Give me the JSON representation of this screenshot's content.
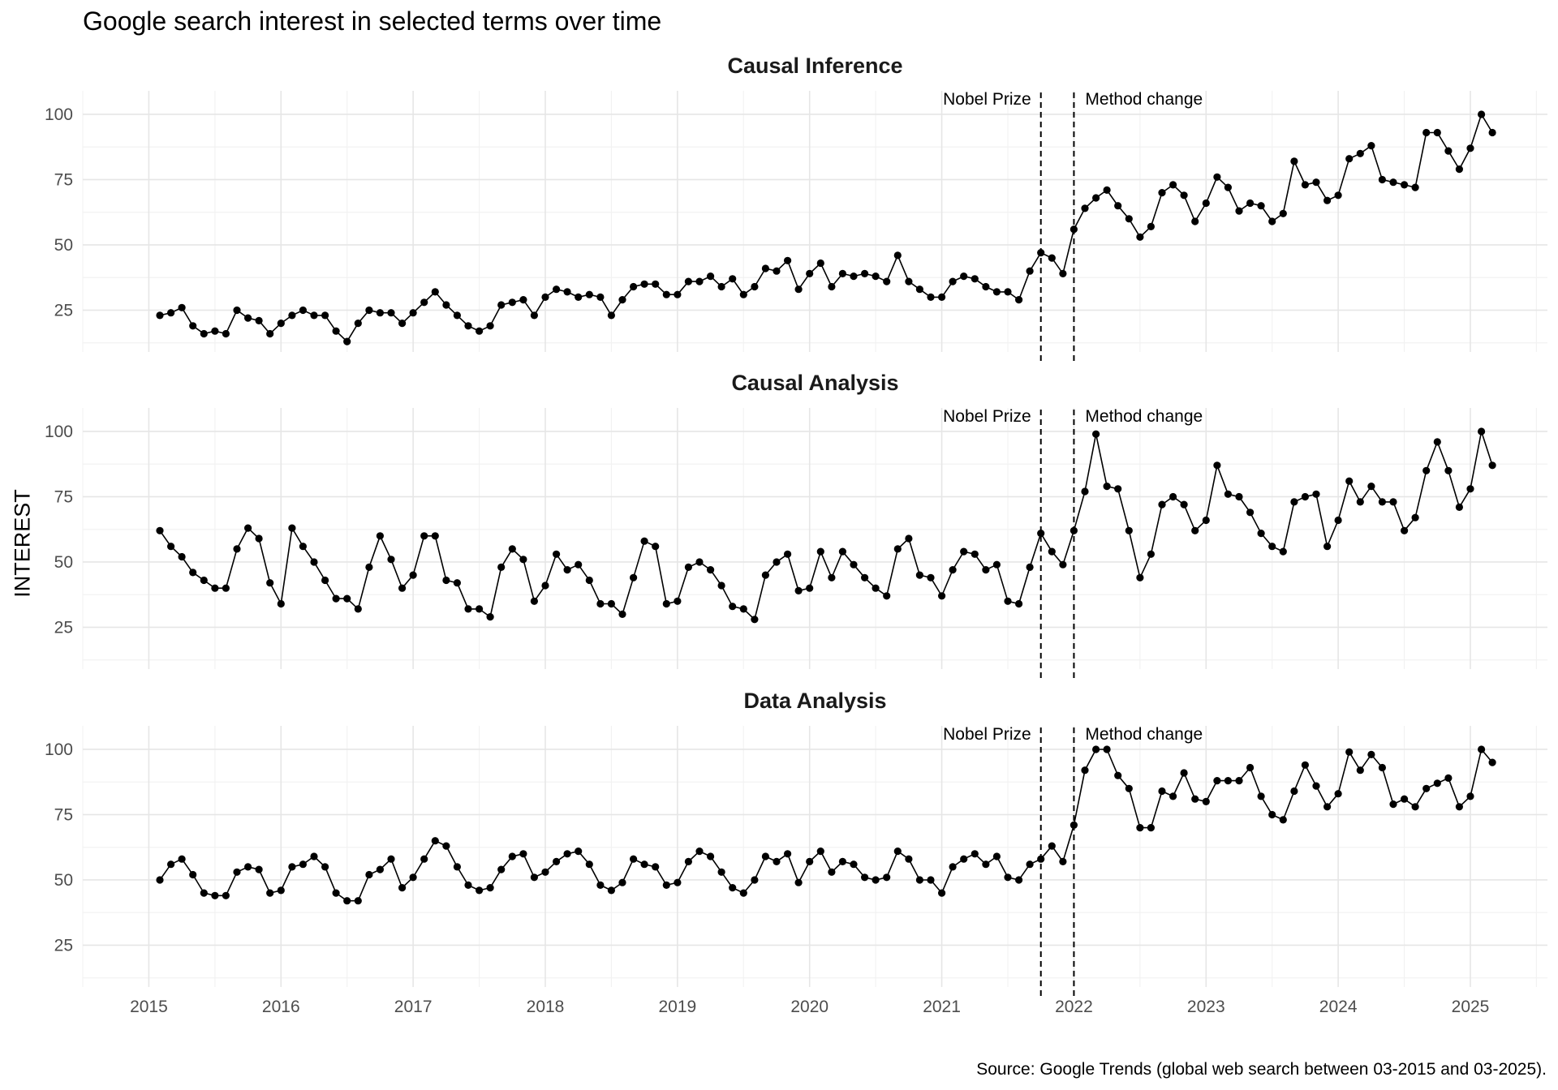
{
  "title": "Google search interest in selected terms over time",
  "ylabel": "INTEREST",
  "source": "Source: Google Trends (global web search between 03-2015 and 03-2025).",
  "chart_data": {
    "type": "line",
    "facets": [
      "Causal Inference",
      "Causal Analysis",
      "Data Analysis"
    ],
    "x_start": "2015-02",
    "x_step": "1 month",
    "x_ticks": [
      "2015",
      "2016",
      "2017",
      "2018",
      "2019",
      "2020",
      "2021",
      "2022",
      "2023",
      "2024",
      "2025"
    ],
    "y_ticks": [
      25,
      50,
      75,
      100
    ],
    "ylim": [
      9,
      109
    ],
    "xlim": [
      "2014-07",
      "2025-08"
    ],
    "grid": true,
    "marker": "point",
    "line_color": "#000000",
    "annotations": [
      {
        "label": "Nobel Prize",
        "x": "2021-10",
        "style": "dashed",
        "label_side": "left"
      },
      {
        "label": "Method change",
        "x": "2022-01",
        "style": "dashed",
        "label_side": "right"
      }
    ],
    "series": [
      {
        "name": "Causal Inference",
        "values": [
          23,
          24,
          26,
          19,
          16,
          17,
          16,
          25,
          22,
          21,
          16,
          20,
          23,
          25,
          23,
          23,
          17,
          13,
          20,
          25,
          24,
          24,
          20,
          24,
          28,
          32,
          27,
          23,
          19,
          17,
          19,
          27,
          28,
          29,
          23,
          30,
          33,
          32,
          30,
          31,
          30,
          23,
          29,
          34,
          35,
          35,
          31,
          31,
          36,
          36,
          38,
          34,
          37,
          31,
          34,
          41,
          40,
          44,
          33,
          39,
          43,
          34,
          39,
          38,
          39,
          38,
          36,
          46,
          36,
          33,
          30,
          30,
          36,
          38,
          37,
          34,
          32,
          32,
          29,
          40,
          47,
          45,
          39,
          56,
          64,
          68,
          71,
          65,
          60,
          53,
          57,
          70,
          73,
          69,
          59,
          66,
          76,
          72,
          63,
          66,
          65,
          59,
          62,
          82,
          73,
          74,
          67,
          69,
          83,
          85,
          88,
          75,
          74,
          73,
          72,
          93,
          93,
          86,
          79,
          87,
          100,
          93
        ]
      },
      {
        "name": "Causal Analysis",
        "values": [
          62,
          56,
          52,
          46,
          43,
          40,
          40,
          55,
          63,
          59,
          42,
          34,
          63,
          56,
          50,
          43,
          36,
          36,
          32,
          48,
          60,
          51,
          40,
          45,
          60,
          60,
          43,
          42,
          32,
          32,
          29,
          48,
          55,
          51,
          35,
          41,
          53,
          47,
          49,
          43,
          34,
          34,
          30,
          44,
          58,
          56,
          34,
          35,
          48,
          50,
          47,
          41,
          33,
          32,
          28,
          45,
          50,
          53,
          39,
          40,
          54,
          44,
          54,
          49,
          44,
          40,
          37,
          55,
          59,
          45,
          44,
          37,
          47,
          54,
          53,
          47,
          49,
          35,
          34,
          48,
          61,
          54,
          49,
          62,
          77,
          99,
          79,
          78,
          62,
          44,
          53,
          72,
          75,
          72,
          62,
          66,
          87,
          76,
          75,
          69,
          61,
          56,
          54,
          73,
          75,
          76,
          56,
          66,
          81,
          73,
          79,
          73,
          73,
          62,
          67,
          85,
          96,
          85,
          71,
          78,
          100,
          87
        ]
      },
      {
        "name": "Data Analysis",
        "values": [
          50,
          56,
          58,
          52,
          45,
          44,
          44,
          53,
          55,
          54,
          45,
          46,
          55,
          56,
          59,
          55,
          45,
          42,
          42,
          52,
          54,
          58,
          47,
          51,
          58,
          65,
          63,
          55,
          48,
          46,
          47,
          54,
          59,
          60,
          51,
          53,
          57,
          60,
          61,
          56,
          48,
          46,
          49,
          58,
          56,
          55,
          48,
          49,
          57,
          61,
          59,
          53,
          47,
          45,
          50,
          59,
          57,
          60,
          49,
          57,
          61,
          53,
          57,
          56,
          51,
          50,
          51,
          61,
          58,
          50,
          50,
          45,
          55,
          58,
          60,
          56,
          59,
          51,
          50,
          56,
          58,
          63,
          57,
          71,
          92,
          100,
          100,
          90,
          85,
          70,
          70,
          84,
          82,
          91,
          81,
          80,
          88,
          88,
          88,
          93,
          82,
          75,
          73,
          84,
          94,
          86,
          78,
          83,
          99,
          92,
          98,
          93,
          79,
          81,
          78,
          85,
          87,
          89,
          78,
          82,
          100,
          95
        ]
      }
    ]
  }
}
